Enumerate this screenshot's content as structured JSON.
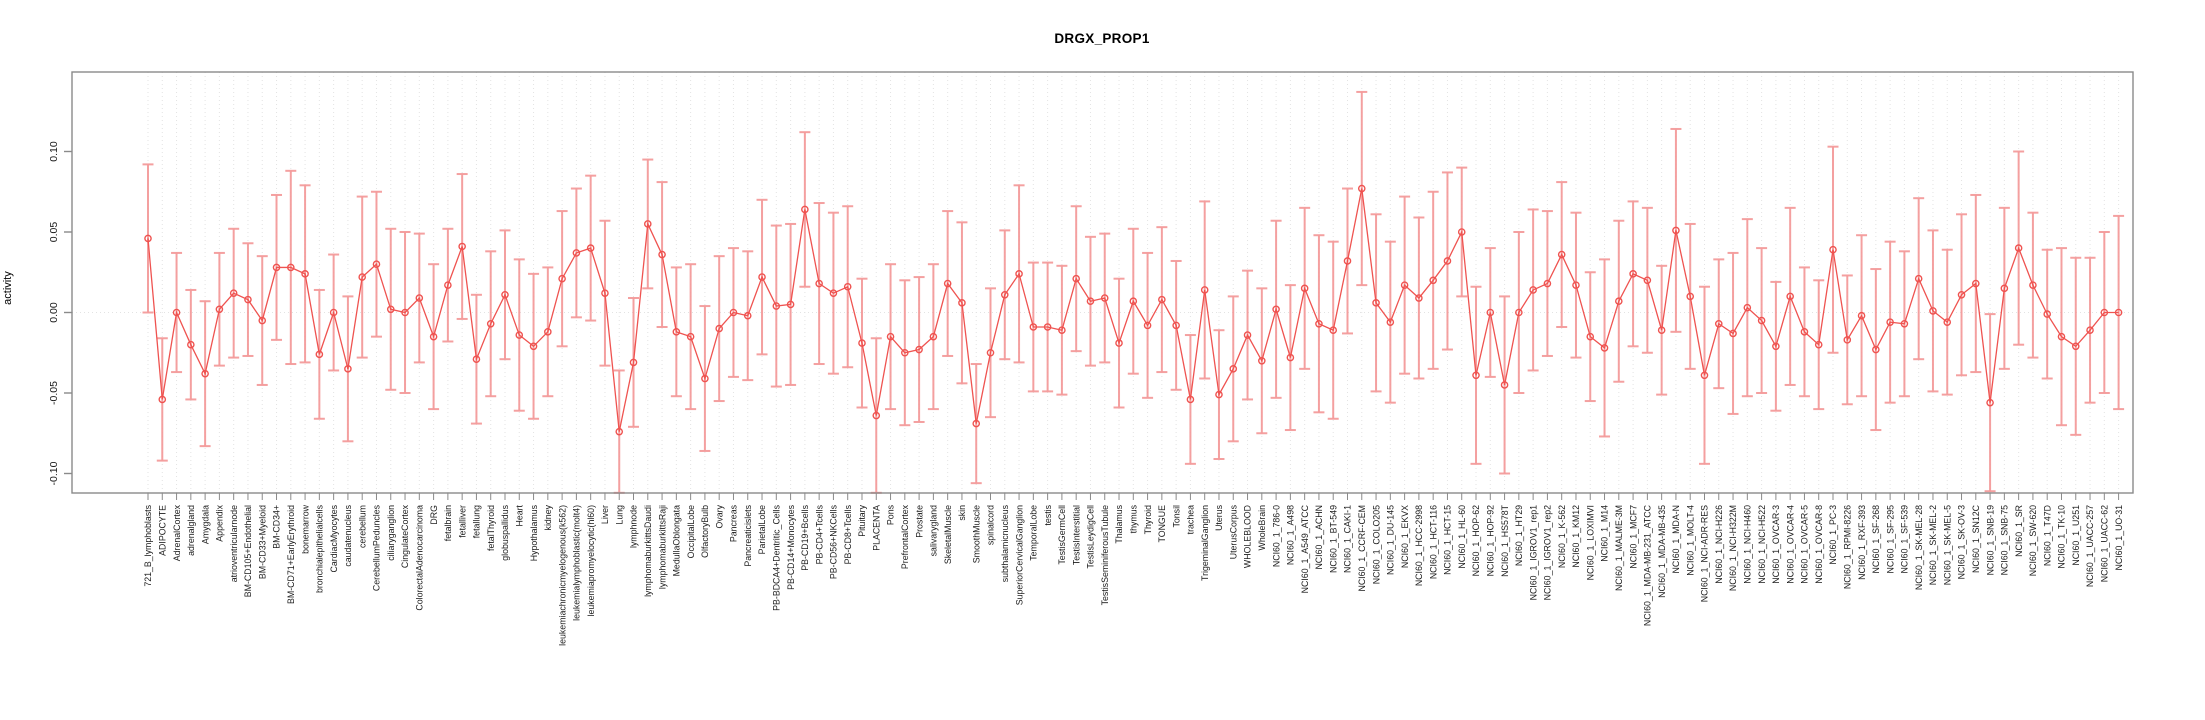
{
  "figure": {
    "title": "DRGX_PROP1"
  },
  "chart_data": {
    "type": "line",
    "title": "DRGX_PROP1",
    "xlabel": "",
    "ylabel": "activity",
    "ylim": [
      -0.112,
      0.149
    ],
    "yticks": [
      -0.1,
      -0.05,
      0.0,
      0.05,
      0.1
    ],
    "ytick_labels": [
      "-0.10",
      "-0.05",
      "0.00",
      "0.05",
      "0.10"
    ],
    "grid": {
      "vertical_per_category": true,
      "zero_line": true,
      "line_style": "dotted",
      "legend": "none"
    },
    "marker": "open-circle",
    "error_bars": "plus-minus",
    "colors": {
      "series": "#ef5350",
      "error_bar": "#f49b9b",
      "axis": "#8a8a8a",
      "grid": "#e3e3e3",
      "text": "#1a1a1a"
    },
    "categories": [
      "721_B_lymphoblasts",
      "ADIPOCYTE",
      "AdrenalCortex",
      "adrenalgland",
      "Amygdala",
      "Appendix",
      "atrioventricularnode",
      "BM-CD105+Endothelial",
      "BM-CD33+Myeloid",
      "BM-CD34+",
      "BM-CD71+EarlyErythroid",
      "bonemarrow",
      "bronchialepithelialcells",
      "CardiacMyocytes",
      "caudatenucleus",
      "cerebellum",
      "CerebellumPeduncles",
      "ciliaryganglion",
      "CingulateCortex",
      "ColorectalAdenocarcinoma",
      "DRG",
      "fetalbrain",
      "fetalliver",
      "fetallung",
      "fetalThyroid",
      "globuspallidus",
      "Heart",
      "Hypothalamus",
      "kidney",
      "leukemiachronicmyelogenous(k562)",
      "leukemialymphoblastic(molt4)",
      "leukemiapromyelocytic(hl60)",
      "Liver",
      "Lung",
      "lymphnode",
      "lymphomaburkittsDaudi",
      "lymphomaburkittsRaji",
      "MedullaOblongata",
      "OccipitalLobe",
      "OlfactoryBulb",
      "Ovary",
      "Pancreas",
      "Pancreaticislets",
      "ParietalLobe",
      "PB-BDCA4+Dentritic_Cells",
      "PB-CD14+Monocytes",
      "PB-CD19+Bcells",
      "PB-CD4+Tcells",
      "PB-CD56+NKCells",
      "PB-CD8+Tcells",
      "Pituitary",
      "PLACENTA",
      "Pons",
      "PrefrontalCortex",
      "Prostate",
      "salivarygland",
      "SkeletalMuscle",
      "skin",
      "SmoothMuscle",
      "spinalcord",
      "subthalamicnucleus",
      "SuperiorCervicalGanglion",
      "TemporalLobe",
      "testis",
      "TestisGermCell",
      "TestisInterstitial",
      "TestisLeydigCell",
      "TestisSeminiferousTubule",
      "Thalamus",
      "thymus",
      "Thyroid",
      "TONGUE",
      "Tonsil",
      "trachea",
      "TrigeminalGanglion",
      "Uterus",
      "UterusCorpus",
      "WHOLEBLOOD",
      "WholeBrain",
      "NCI60_1_786-0",
      "NCI60_1_A498",
      "NCI60_1_A549_ATCC",
      "NCI60_1_ACHN",
      "NCI60_1_BT-549",
      "NCI60_1_CAKI-1",
      "NCI60_1_CCRF-CEM",
      "NCI60_1_COLO205",
      "NCI60_1_DU-145",
      "NCI60_1_EKVX",
      "NCI60_1_HCC-2998",
      "NCI60_1_HCT-116",
      "NCI60_1_HCT-15",
      "NCI60_1_HL-60",
      "NCI60_1_HOP-62",
      "NCI60_1_HOP-92",
      "NCI60_1_HS578T",
      "NCI60_1_HT29",
      "NCI60_1_IGROV1_rep1",
      "NCI60_1_IGROV1_rep2",
      "NCI60_1_K-562",
      "NCI60_1_KM12",
      "NCI60_1_LOXIMVI",
      "NCI60_1_M14",
      "NCI60_1_MALME-3M",
      "NCI60_1_MCF7",
      "NCI60_1_MDA-MB-231_ATCC",
      "NCI60_1_MDA-MB-435",
      "NCI60_1_MDA-N",
      "NCI60_1_MOLT-4",
      "NCI60_1_NCI-ADR-RES",
      "NCI60_1_NCI-H226",
      "NCI60_1_NCI-H322M",
      "NCI60_1_NCI-H460",
      "NCI60_1_NCI-H522",
      "NCI60_1_OVCAR-3",
      "NCI60_1_OVCAR-4",
      "NCI60_1_OVCAR-5",
      "NCI60_1_OVCAR-8",
      "NCI60_1_PC-3",
      "NCI60_1_RPMI-8226",
      "NCI60_1_RXF-393",
      "NCI60_1_SF-268",
      "NCI60_1_SF-295",
      "NCI60_1_SF-539",
      "NCI60_1_SK-MEL-28",
      "NCI60_1_SK-MEL-2",
      "NCI60_1_SK-MEL-5",
      "NCI60_1_SK-OV-3",
      "NCI60_1_SN12C",
      "NCI60_1_SNB-19",
      "NCI60_1_SNB-75",
      "NCI60_1_SR",
      "NCI60_1_SW-620",
      "NCI60_1_T47D",
      "NCI60_1_TK-10",
      "NCI60_1_U251",
      "NCI60_1_UACC-257",
      "NCI60_1_UACC-62",
      "NCI60_1_UO-31"
    ],
    "values": [
      0.046,
      -0.054,
      0.0,
      -0.02,
      -0.038,
      0.002,
      0.012,
      0.008,
      -0.005,
      0.028,
      0.028,
      0.024,
      -0.026,
      0.0,
      -0.035,
      0.022,
      0.03,
      0.002,
      0.0,
      0.009,
      -0.015,
      0.017,
      0.041,
      -0.029,
      -0.007,
      0.011,
      -0.014,
      -0.021,
      -0.012,
      0.021,
      0.037,
      0.04,
      0.012,
      -0.074,
      -0.031,
      0.055,
      0.036,
      -0.012,
      -0.015,
      -0.041,
      -0.01,
      0.0,
      -0.002,
      0.022,
      0.004,
      0.005,
      0.064,
      0.018,
      0.012,
      0.016,
      -0.019,
      -0.064,
      -0.015,
      -0.025,
      -0.023,
      -0.015,
      0.018,
      0.006,
      -0.069,
      -0.025,
      0.011,
      0.024,
      -0.009,
      -0.009,
      -0.011,
      0.021,
      0.007,
      0.009,
      -0.019,
      0.007,
      -0.008,
      0.008,
      -0.008,
      -0.054,
      0.014,
      -0.051,
      -0.035,
      -0.014,
      -0.03,
      0.002,
      -0.028,
      0.015,
      -0.007,
      -0.011,
      0.032,
      0.077,
      0.006,
      -0.006,
      0.017,
      0.009,
      0.02,
      0.032,
      0.05,
      -0.039,
      0.0,
      -0.045,
      0.0,
      0.014,
      0.018,
      0.036,
      0.017,
      -0.015,
      -0.022,
      0.007,
      0.024,
      0.02,
      -0.011,
      0.051,
      0.01,
      -0.039,
      -0.007,
      -0.013,
      0.003,
      -0.005,
      -0.021,
      0.01,
      -0.012,
      -0.02,
      0.039,
      -0.017,
      -0.002,
      -0.023,
      -0.006,
      -0.007,
      0.021,
      0.001,
      -0.006,
      0.011,
      0.018,
      -0.056,
      0.015,
      0.04,
      0.017,
      -0.001,
      -0.015,
      -0.021,
      -0.011,
      0.0,
      0.0
    ],
    "errors": [
      0.046,
      0.038,
      0.037,
      0.034,
      0.045,
      0.035,
      0.04,
      0.035,
      0.04,
      0.045,
      0.06,
      0.055,
      0.04,
      0.036,
      0.045,
      0.05,
      0.045,
      0.05,
      0.05,
      0.04,
      0.045,
      0.035,
      0.045,
      0.04,
      0.045,
      0.04,
      0.047,
      0.045,
      0.04,
      0.042,
      0.04,
      0.045,
      0.045,
      0.038,
      0.04,
      0.04,
      0.045,
      0.04,
      0.045,
      0.045,
      0.045,
      0.04,
      0.04,
      0.048,
      0.05,
      0.05,
      0.048,
      0.05,
      0.05,
      0.05,
      0.04,
      0.048,
      0.045,
      0.045,
      0.045,
      0.045,
      0.045,
      0.05,
      0.037,
      0.04,
      0.04,
      0.055,
      0.04,
      0.04,
      0.04,
      0.045,
      0.04,
      0.04,
      0.04,
      0.045,
      0.045,
      0.045,
      0.04,
      0.04,
      0.055,
      0.04,
      0.045,
      0.04,
      0.045,
      0.055,
      0.045,
      0.05,
      0.055,
      0.055,
      0.045,
      0.06,
      0.055,
      0.05,
      0.055,
      0.05,
      0.055,
      0.055,
      0.04,
      0.055,
      0.04,
      0.055,
      0.05,
      0.05,
      0.045,
      0.045,
      0.045,
      0.04,
      0.055,
      0.05,
      0.045,
      0.045,
      0.04,
      0.063,
      0.045,
      0.055,
      0.04,
      0.05,
      0.055,
      0.045,
      0.04,
      0.055,
      0.04,
      0.04,
      0.064,
      0.04,
      0.05,
      0.05,
      0.05,
      0.045,
      0.05,
      0.05,
      0.045,
      0.05,
      0.055,
      0.055,
      0.05,
      0.06,
      0.045,
      0.04,
      0.055,
      0.055,
      0.045,
      0.05,
      0.06
    ]
  }
}
